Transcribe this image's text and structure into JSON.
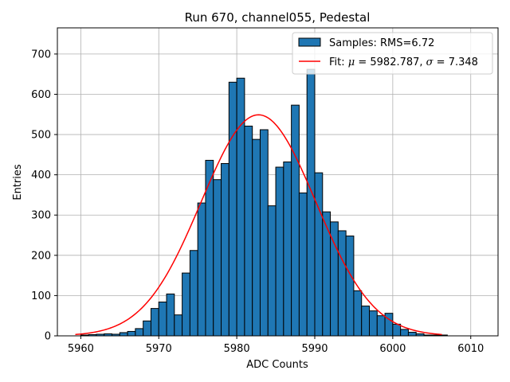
{
  "chart_data": {
    "type": "bar",
    "title": "Run 670, channel055, Pedestal",
    "xlabel": "ADC Counts",
    "ylabel": "Entries",
    "xlim": [
      5957.0,
      6013.5
    ],
    "ylim": [
      0,
      765
    ],
    "xticks": [
      5960,
      5970,
      5980,
      5990,
      6000,
      6010
    ],
    "yticks": [
      0,
      100,
      200,
      300,
      400,
      500,
      600,
      700
    ],
    "grid": true,
    "bar_color": "#1f77b4",
    "bin_width": 1.0,
    "bins": [
      [
        5960,
        2
      ],
      [
        5961,
        3
      ],
      [
        5962,
        4
      ],
      [
        5963,
        5
      ],
      [
        5964,
        4
      ],
      [
        5965,
        8
      ],
      [
        5966,
        11
      ],
      [
        5967,
        18
      ],
      [
        5968,
        37
      ],
      [
        5969,
        68
      ],
      [
        5970,
        84
      ],
      [
        5971,
        104
      ],
      [
        5972,
        52
      ],
      [
        5973,
        156
      ],
      [
        5974,
        212
      ],
      [
        5975,
        330
      ],
      [
        5976,
        436
      ],
      [
        5977,
        388
      ],
      [
        5978,
        428
      ],
      [
        5979,
        630
      ],
      [
        5980,
        640
      ],
      [
        5981,
        521
      ],
      [
        5982,
        488
      ],
      [
        5983,
        512
      ],
      [
        5984,
        323
      ],
      [
        5985,
        419
      ],
      [
        5986,
        432
      ],
      [
        5987,
        573
      ],
      [
        5988,
        355
      ],
      [
        5989,
        662
      ],
      [
        5990,
        405
      ],
      [
        5991,
        308
      ],
      [
        5992,
        283
      ],
      [
        5993,
        261
      ],
      [
        5994,
        248
      ],
      [
        5995,
        112
      ],
      [
        5996,
        74
      ],
      [
        5997,
        62
      ],
      [
        5998,
        50
      ],
      [
        5999,
        56
      ],
      [
        6000,
        29
      ],
      [
        6001,
        16
      ],
      [
        6002,
        9
      ],
      [
        6003,
        5
      ],
      [
        6004,
        2
      ],
      [
        6005,
        2
      ],
      [
        6006,
        2
      ]
    ],
    "fit": {
      "mu": 5982.787,
      "sigma": 7.348,
      "peak": 549,
      "x_range": [
        5959.3,
        6006.3
      ],
      "color": "#ff0000"
    },
    "legend": {
      "position": "top-right",
      "bars_label": "Samples: RMS=6.72",
      "fit_label_prefix": "Fit: ",
      "mu_symbol": "μ",
      "mu_text": " = 5982.787, ",
      "sigma_symbol": "σ",
      "sigma_text": " = 7.348"
    }
  }
}
